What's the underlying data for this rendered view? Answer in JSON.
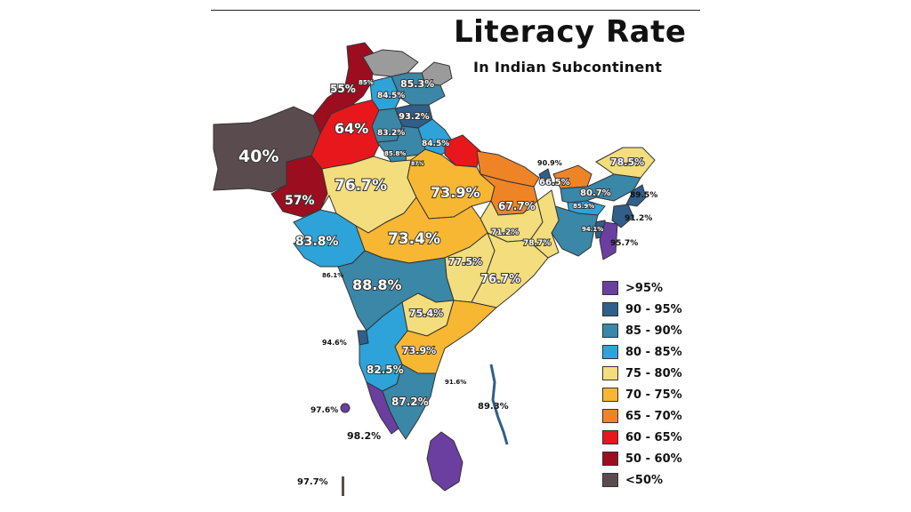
{
  "title": "Literacy Rate",
  "subtitle": "In Indian Subcontinent",
  "colors": {
    "gt95": "#6a3fa0",
    "r90_95": "#2f5f8a",
    "r85_90": "#3a87a8",
    "r80_85": "#2ea3d9",
    "r75_80": "#f3dd7d",
    "r70_75": "#f7b733",
    "r65_70": "#ef8427",
    "r60_65": "#e8171b",
    "r50_60": "#9c0d1f",
    "lt50": "#5a4c4e",
    "nodata": "#9b9b9b"
  },
  "legend": [
    {
      "label": ">95%",
      "color": "#6a3fa0"
    },
    {
      "label": "90 - 95%",
      "color": "#2f5f8a"
    },
    {
      "label": "85 - 90%",
      "color": "#3a87a8"
    },
    {
      "label": "80 - 85%",
      "color": "#2ea3d9"
    },
    {
      "label": "75 - 80%",
      "color": "#f3dd7d"
    },
    {
      "label": "70 - 75%",
      "color": "#f7b733"
    },
    {
      "label": "65 - 70%",
      "color": "#ef8427"
    },
    {
      "label": "60 - 65%",
      "color": "#e8171b"
    },
    {
      "label": "50 - 60%",
      "color": "#9c0d1f"
    },
    {
      "label": "<50%",
      "color": "#5a4c4e"
    }
  ],
  "labels": {
    "balochistan": "40%",
    "sindh": "57%",
    "punjab_pk": "64%",
    "kpk": "55%",
    "gb_small": "85%",
    "ladakh": "85.3%",
    "jk": "84.5%",
    "hp": "93.2%",
    "punjab_in": "83.2%",
    "haryana": "85.8%",
    "uttarakhand": "84.5%",
    "delhi": "87%",
    "rajasthan": "76.7%",
    "up": "73.9%",
    "bihar": "67.7%",
    "gujarat": "83.8%",
    "mp": "73.4%",
    "maharashtra": "88.8%",
    "chhattisgarh": "77.5%",
    "jharkhand": "71.2%",
    "wb": "78.7%",
    "odisha": "76.7%",
    "telangana": "75.4%",
    "ap": "73.9%",
    "karnataka": "82.5%",
    "tn": "87.2%",
    "kerala": "98.2%",
    "goa": "94.6%",
    "dnh": "86.1%",
    "lakshadweep": "97.6%",
    "maldives": "97.7%",
    "puducherry": "91.6%",
    "andaman": "89.3%",
    "sikkim": "90.9%",
    "nepal": "66.5%",
    "bhutan": "78.5%",
    "assam": "80.7%",
    "nagaland": "89.5%",
    "meghalaya": "85.9%",
    "manipur": "91.2%",
    "mizoram": "95.7%",
    "tripura": "94.1%"
  }
}
